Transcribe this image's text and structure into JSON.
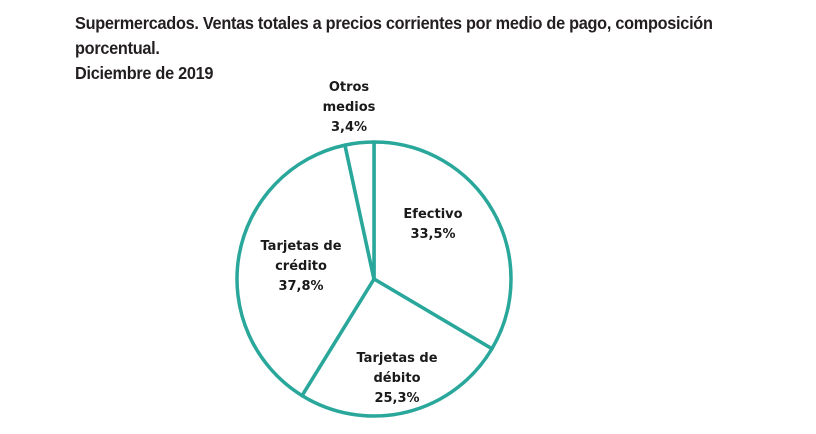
{
  "title": {
    "line1": "Supermercados. Ventas totales a precios corrientes por medio de pago, composición porcentual.",
    "line2": "Diciembre de 2019"
  },
  "colors": {
    "slice_outline": "#2aa79b",
    "slice_fill": "#ffffff",
    "text": "#231f20"
  },
  "chart_data": {
    "type": "pie",
    "title": "Supermercados. Ventas totales a precios corrientes por medio de pago, composición porcentual. Diciembre de 2019",
    "categories": [
      "Efectivo",
      "Tarjetas de débito",
      "Tarjetas de crédito",
      "Otros medios"
    ],
    "values": [
      33.5,
      25.3,
      37.8,
      3.4
    ],
    "unit": "%",
    "start_angle": "12 o'clock, clockwise",
    "legend": "none (direct labels)"
  },
  "labels": {
    "efectivo": {
      "line1": "Efectivo",
      "value": "33,5%"
    },
    "debito": {
      "line1": "Tarjetas de",
      "line2": "débito",
      "value": "25,3%"
    },
    "credito": {
      "line1": "Tarjetas de",
      "line2": "crédito",
      "value": "37,8%"
    },
    "otros": {
      "line1": "Otros",
      "line2": "medios",
      "value": "3,4%"
    }
  }
}
